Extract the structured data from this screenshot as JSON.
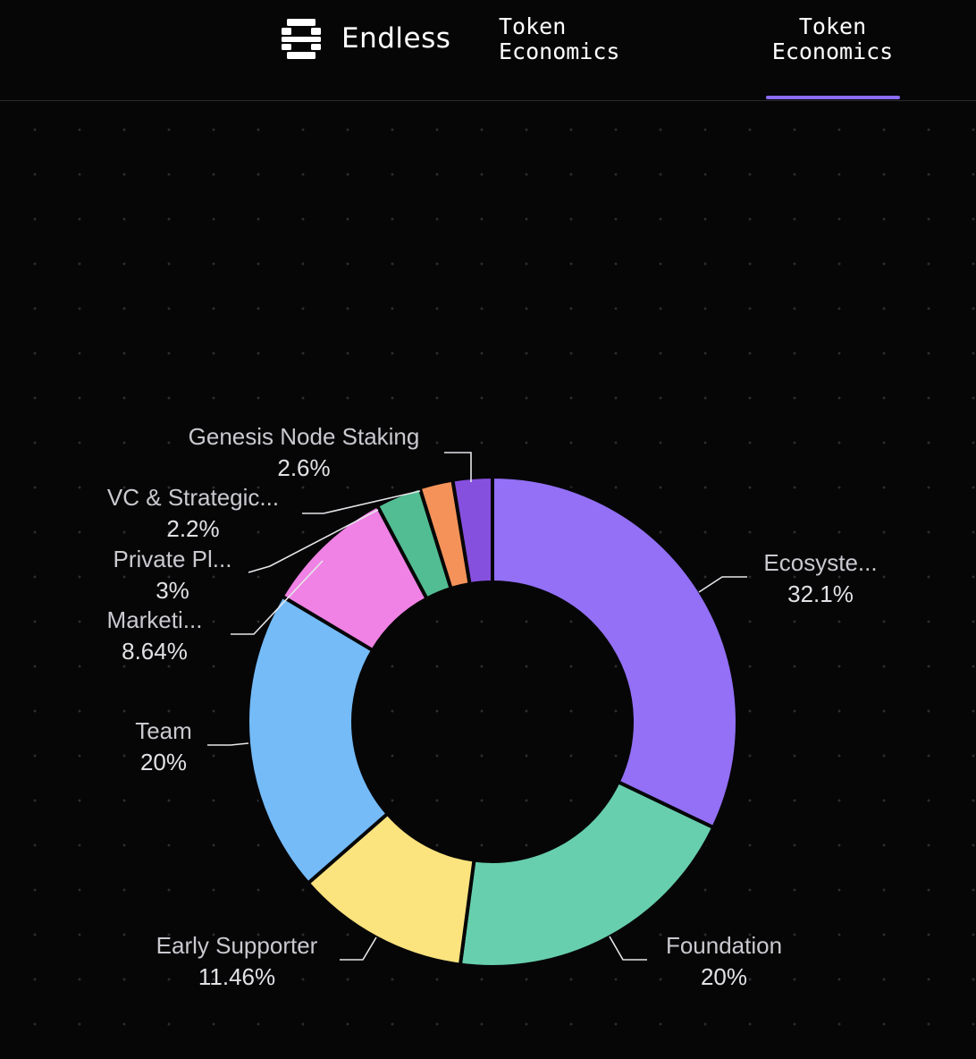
{
  "header": {
    "brand": "Endless",
    "nav": [
      {
        "line1": "Token",
        "line2": "Economics",
        "active": false
      },
      {
        "line1": "Token",
        "line2": "Economics",
        "active": true
      }
    ],
    "accent_color": "#8b6cf6"
  },
  "chart_data": {
    "type": "pie",
    "donut": true,
    "title": "",
    "unit": "%",
    "slices": [
      {
        "label": "Ecosyste...",
        "value": 32.1,
        "value_label": "32.1%",
        "color": "#9370f6"
      },
      {
        "label": "Foundation",
        "value": 20,
        "value_label": "20%",
        "color": "#67cfae"
      },
      {
        "label": "Early Supporter",
        "value": 11.46,
        "value_label": "11.46%",
        "color": "#fbe37e"
      },
      {
        "label": "Team",
        "value": 20,
        "value_label": "20%",
        "color": "#74bbf8"
      },
      {
        "label": "Marketi...",
        "value": 8.64,
        "value_label": "8.64%",
        "color": "#ef82e4"
      },
      {
        "label": "Private Pl...",
        "value": 3,
        "value_label": "3%",
        "color": "#52bd92"
      },
      {
        "label": "VC & Strategic...",
        "value": 2.2,
        "value_label": "2.2%",
        "color": "#f4925a"
      },
      {
        "label": "Genesis Node Staking",
        "value": 2.6,
        "value_label": "2.6%",
        "color": "#8650df"
      }
    ]
  }
}
